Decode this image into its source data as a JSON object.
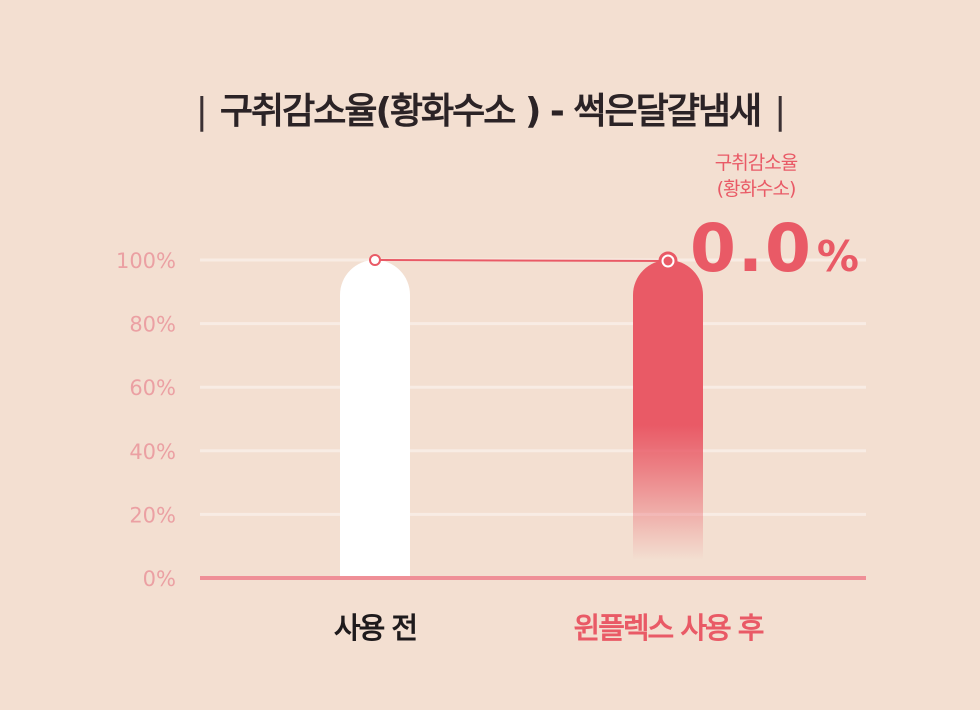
{
  "title": "구취감소율(황화수소 ) - 썩은달걀냄새",
  "title_separator": "|",
  "callout": {
    "line1": "구취감소율",
    "line2": "(황화수소)",
    "value": "0.0",
    "unit": "%"
  },
  "colors": {
    "background": "#f3dfd1",
    "accent": "#e95a66",
    "before_bar": "#ffffff",
    "axis_label": "#eba0a3",
    "gridline": "#f8ece4",
    "baseline": "#ef8f97"
  },
  "chart_data": {
    "type": "bar",
    "categories": [
      "사용 전",
      "윈플렉스 사용 후"
    ],
    "values": [
      100,
      100
    ],
    "y_ticks": [
      "0%",
      "20%",
      "40%",
      "60%",
      "80%",
      "100%"
    ],
    "ylim": [
      0,
      100
    ],
    "grid": true,
    "connector_line": true
  }
}
